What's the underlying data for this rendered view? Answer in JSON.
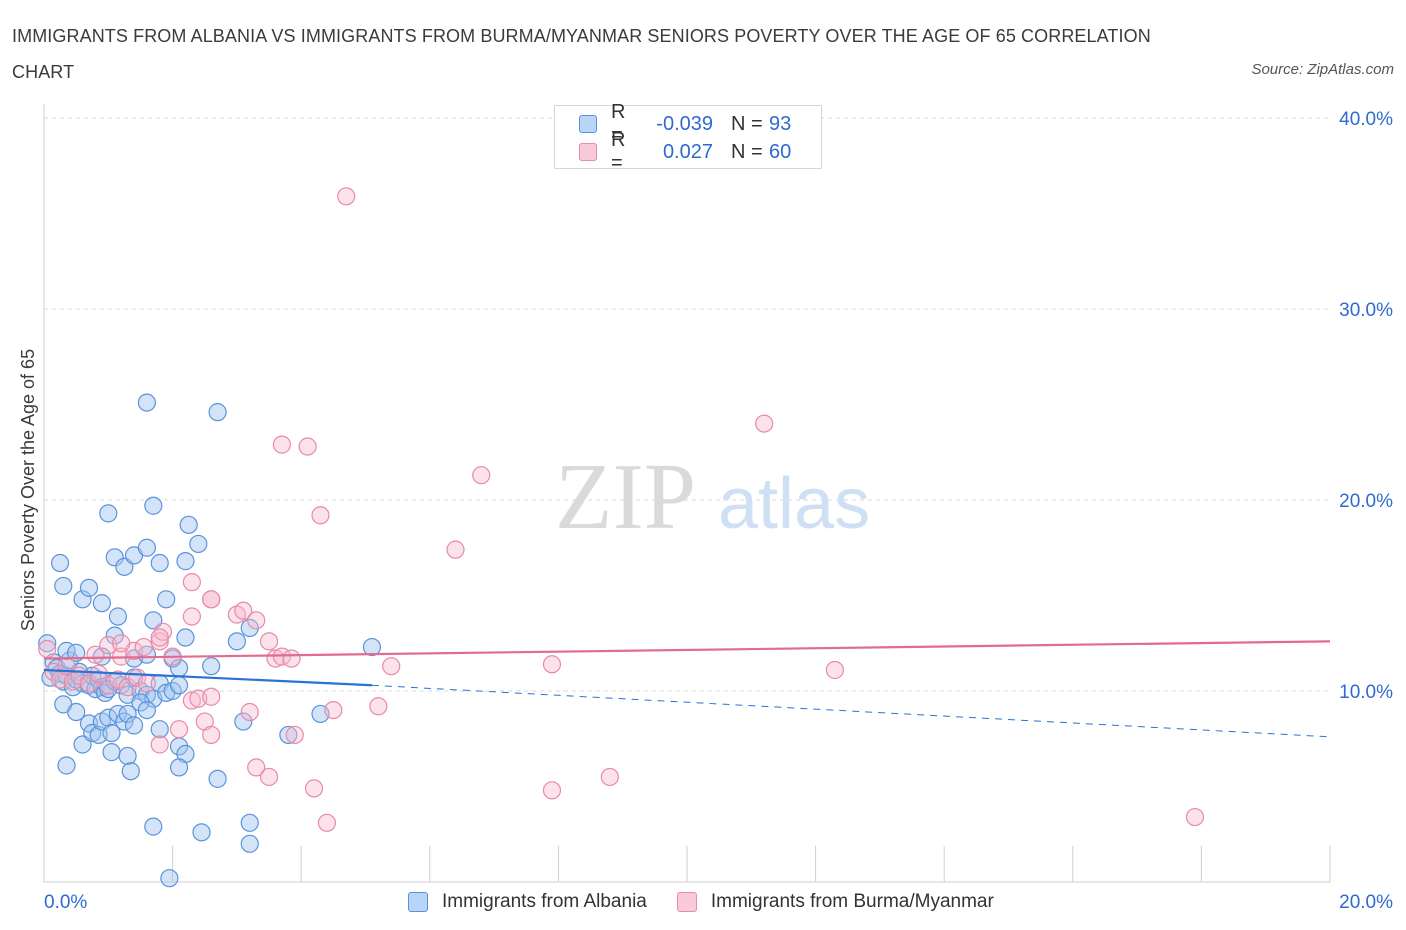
{
  "title": "IMMIGRANTS FROM ALBANIA VS IMMIGRANTS FROM BURMA/MYANMAR SENIORS POVERTY OVER THE AGE OF 65 CORRELATION CHART",
  "source": "Source: ZipAtlas.com",
  "watermark": {
    "zip": "ZIP",
    "atlas": "atlas"
  },
  "legend_top": [
    {
      "r_label": "R =",
      "r_value": "-0.039",
      "n_label": "N =",
      "n_value": "93"
    },
    {
      "r_label": "R =",
      "r_value": "0.027",
      "n_label": "N =",
      "n_value": "60"
    }
  ],
  "legend_bottom": [
    "Immigrants from Albania",
    "Immigrants from Burma/Myanmar"
  ],
  "colors": {
    "albania_fill": "#9ec4f0",
    "albania_stroke": "#5b93da",
    "albania_line": "#2a72d4",
    "burma_fill": "#f7b8cd",
    "burma_stroke": "#e88aa8",
    "burma_line": "#e26b92",
    "tick_text": "#2e6ad1",
    "grid": "#d9d9d9"
  },
  "chart_data": {
    "type": "scatter",
    "title": "IMMIGRANTS FROM ALBANIA VS IMMIGRANTS FROM BURMA/MYANMAR SENIORS POVERTY OVER THE AGE OF 65 CORRELATION CHART",
    "xlabel": "",
    "ylabel": "Seniors Poverty Over the Age of 65",
    "xlim": [
      0,
      20
    ],
    "ylim": [
      0,
      40
    ],
    "x_tick_labels": [
      "0.0%",
      "20.0%"
    ],
    "y_ticks": [
      10,
      20,
      30,
      40
    ],
    "y_tick_labels": [
      "10.0%",
      "20.0%",
      "30.0%",
      "40.0%"
    ],
    "grid": true,
    "series": [
      {
        "name": "Immigrants from Albania",
        "r": -0.039,
        "n": 93,
        "trend": {
          "solid": [
            [
              0,
              11.1
            ],
            [
              5.1,
              10.3
            ]
          ],
          "dashed": [
            [
              5.1,
              10.3
            ],
            [
              20,
              7.6
            ]
          ]
        },
        "points": [
          [
            0.05,
            12.5
          ],
          [
            0.1,
            10.7
          ],
          [
            0.15,
            11.5
          ],
          [
            0.2,
            11.2
          ],
          [
            0.25,
            10.9
          ],
          [
            0.3,
            10.5
          ],
          [
            0.35,
            10.8
          ],
          [
            0.4,
            11.6
          ],
          [
            0.45,
            10.2
          ],
          [
            0.5,
            10.6
          ],
          [
            0.55,
            11.0
          ],
          [
            0.6,
            10.4
          ],
          [
            0.7,
            10.3
          ],
          [
            0.75,
            10.8
          ],
          [
            0.8,
            10.1
          ],
          [
            0.85,
            10.6
          ],
          [
            0.9,
            10.2
          ],
          [
            0.95,
            9.9
          ],
          [
            1.0,
            10.1
          ],
          [
            1.1,
            10.5
          ],
          [
            1.2,
            10.3
          ],
          [
            1.3,
            9.8
          ],
          [
            1.4,
            10.7
          ],
          [
            1.5,
            10.0
          ],
          [
            1.6,
            9.8
          ],
          [
            1.7,
            9.6
          ],
          [
            1.8,
            10.4
          ],
          [
            1.9,
            9.9
          ],
          [
            2.0,
            10.0
          ],
          [
            2.1,
            10.3
          ],
          [
            0.25,
            16.7
          ],
          [
            0.3,
            15.5
          ],
          [
            0.6,
            14.8
          ],
          [
            0.7,
            15.4
          ],
          [
            0.9,
            14.6
          ],
          [
            1.15,
            13.9
          ],
          [
            1.1,
            12.9
          ],
          [
            1.7,
            13.7
          ],
          [
            1.9,
            14.8
          ],
          [
            2.2,
            12.8
          ],
          [
            0.35,
            12.1
          ],
          [
            0.5,
            12.0
          ],
          [
            0.9,
            11.8
          ],
          [
            1.4,
            11.7
          ],
          [
            1.6,
            11.9
          ],
          [
            2.0,
            11.7
          ],
          [
            2.1,
            11.2
          ],
          [
            2.6,
            11.3
          ],
          [
            3.0,
            12.6
          ],
          [
            3.2,
            13.3
          ],
          [
            1.7,
            19.7
          ],
          [
            1.0,
            19.3
          ],
          [
            1.1,
            17.0
          ],
          [
            1.25,
            16.5
          ],
          [
            1.4,
            17.1
          ],
          [
            1.6,
            17.5
          ],
          [
            1.8,
            16.7
          ],
          [
            2.2,
            16.8
          ],
          [
            2.25,
            18.7
          ],
          [
            2.4,
            17.7
          ],
          [
            1.6,
            25.1
          ],
          [
            2.7,
            24.6
          ],
          [
            5.1,
            12.3
          ],
          [
            3.1,
            8.4
          ],
          [
            3.8,
            7.7
          ],
          [
            4.3,
            8.8
          ],
          [
            0.3,
            9.3
          ],
          [
            0.5,
            8.9
          ],
          [
            0.6,
            7.2
          ],
          [
            0.7,
            8.3
          ],
          [
            0.75,
            7.8
          ],
          [
            0.85,
            7.7
          ],
          [
            0.9,
            8.4
          ],
          [
            1.0,
            8.6
          ],
          [
            1.05,
            7.8
          ],
          [
            1.15,
            8.8
          ],
          [
            1.25,
            8.4
          ],
          [
            1.3,
            8.8
          ],
          [
            1.4,
            8.2
          ],
          [
            1.5,
            9.4
          ],
          [
            1.6,
            9.0
          ],
          [
            1.8,
            8.0
          ],
          [
            2.1,
            7.1
          ],
          [
            2.2,
            6.7
          ],
          [
            1.05,
            6.8
          ],
          [
            1.3,
            6.6
          ],
          [
            1.35,
            5.8
          ],
          [
            2.1,
            6.0
          ],
          [
            0.35,
            6.1
          ],
          [
            2.7,
            5.4
          ],
          [
            1.7,
            2.9
          ],
          [
            2.45,
            2.6
          ],
          [
            3.2,
            3.1
          ],
          [
            3.2,
            2.0
          ],
          [
            1.95,
            0.2
          ]
        ]
      },
      {
        "name": "Immigrants from Burma/Myanmar",
        "r": 0.027,
        "n": 60,
        "trend": {
          "solid": [
            [
              0,
              11.7
            ],
            [
              20,
              12.6
            ]
          ]
        },
        "points": [
          [
            0.05,
            12.2
          ],
          [
            0.15,
            11.0
          ],
          [
            0.25,
            10.6
          ],
          [
            0.35,
            11.3
          ],
          [
            0.45,
            10.5
          ],
          [
            0.55,
            10.8
          ],
          [
            0.7,
            10.4
          ],
          [
            0.85,
            10.9
          ],
          [
            1.0,
            10.3
          ],
          [
            1.15,
            10.6
          ],
          [
            1.3,
            10.2
          ],
          [
            1.45,
            10.7
          ],
          [
            1.6,
            10.4
          ],
          [
            0.8,
            11.9
          ],
          [
            1.0,
            12.4
          ],
          [
            1.2,
            11.8
          ],
          [
            1.4,
            12.1
          ],
          [
            1.55,
            12.3
          ],
          [
            1.8,
            12.6
          ],
          [
            2.0,
            11.8
          ],
          [
            1.2,
            12.5
          ],
          [
            1.85,
            13.1
          ],
          [
            2.3,
            13.9
          ],
          [
            2.6,
            14.8
          ],
          [
            3.0,
            14.0
          ],
          [
            3.1,
            14.2
          ],
          [
            3.3,
            13.7
          ],
          [
            3.5,
            12.6
          ],
          [
            3.6,
            11.7
          ],
          [
            3.7,
            11.8
          ],
          [
            3.85,
            11.7
          ],
          [
            5.4,
            11.3
          ],
          [
            7.9,
            11.4
          ],
          [
            12.3,
            11.1
          ],
          [
            2.3,
            15.7
          ],
          [
            2.6,
            14.8
          ],
          [
            1.8,
            12.8
          ],
          [
            3.7,
            22.9
          ],
          [
            4.1,
            22.8
          ],
          [
            4.3,
            19.2
          ],
          [
            6.4,
            17.4
          ],
          [
            6.8,
            21.3
          ],
          [
            11.2,
            24.0
          ],
          [
            4.7,
            35.9
          ],
          [
            2.3,
            9.5
          ],
          [
            2.4,
            9.6
          ],
          [
            2.6,
            9.7
          ],
          [
            3.2,
            8.9
          ],
          [
            2.1,
            8.0
          ],
          [
            2.5,
            8.4
          ],
          [
            2.6,
            7.7
          ],
          [
            1.8,
            7.2
          ],
          [
            3.3,
            6.0
          ],
          [
            3.5,
            5.5
          ],
          [
            3.9,
            7.7
          ],
          [
            4.5,
            9.0
          ],
          [
            5.2,
            9.2
          ],
          [
            4.2,
            4.9
          ],
          [
            4.4,
            3.1
          ],
          [
            7.9,
            4.8
          ]
        ],
        "extra_points": [
          [
            8.8,
            5.5
          ],
          [
            17.9,
            3.4
          ]
        ]
      }
    ]
  }
}
